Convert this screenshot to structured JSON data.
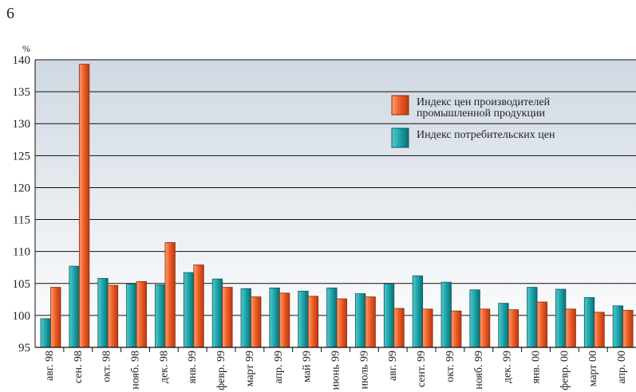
{
  "page_number": "6",
  "chart_data": {
    "type": "bar",
    "ylabel": "%",
    "ylim": [
      95,
      140
    ],
    "yticks": [
      95,
      100,
      105,
      110,
      115,
      120,
      125,
      130,
      135,
      140
    ],
    "grid": true,
    "legend_position": "upper-right",
    "categories": [
      "авг. 98",
      "сен. 98",
      "окт. 98",
      "нояб. 98",
      "дек. 98",
      "янв. 99",
      "февр. 99",
      "март 99",
      "апр. 99",
      "май 99",
      "июнь 99",
      "июль 99",
      "авг. 99",
      "сент. 99",
      "окт. 99",
      "нояб. 99",
      "дек. 99",
      "янв. 00",
      "февр. 00",
      "март 00",
      "апр. 00"
    ],
    "series": [
      {
        "name": "Индекс потребительских цен",
        "color": "#1aa3a8",
        "values": [
          99.5,
          107.7,
          105.8,
          104.9,
          104.8,
          106.7,
          105.7,
          104.2,
          104.3,
          103.8,
          104.3,
          103.4,
          104.9,
          106.2,
          105.2,
          104.0,
          101.9,
          104.4,
          104.1,
          102.8,
          101.5
        ]
      },
      {
        "name": "Индекс цен производителей промышленной продукции",
        "color": "#ee5a24",
        "values": [
          104.4,
          139.3,
          104.7,
          105.3,
          111.4,
          107.9,
          104.4,
          102.9,
          103.5,
          103.0,
          102.6,
          102.9,
          101.1,
          101.0,
          100.7,
          101.0,
          100.9,
          102.1,
          101.0,
          100.5,
          100.8
        ]
      }
    ],
    "legend": [
      {
        "lines": [
          "Индекс цен производителей",
          "промышленной продукции"
        ],
        "color": "#ee5a24"
      },
      {
        "lines": [
          "Индекс потребительских цен"
        ],
        "color": "#1aa3a8"
      }
    ]
  }
}
